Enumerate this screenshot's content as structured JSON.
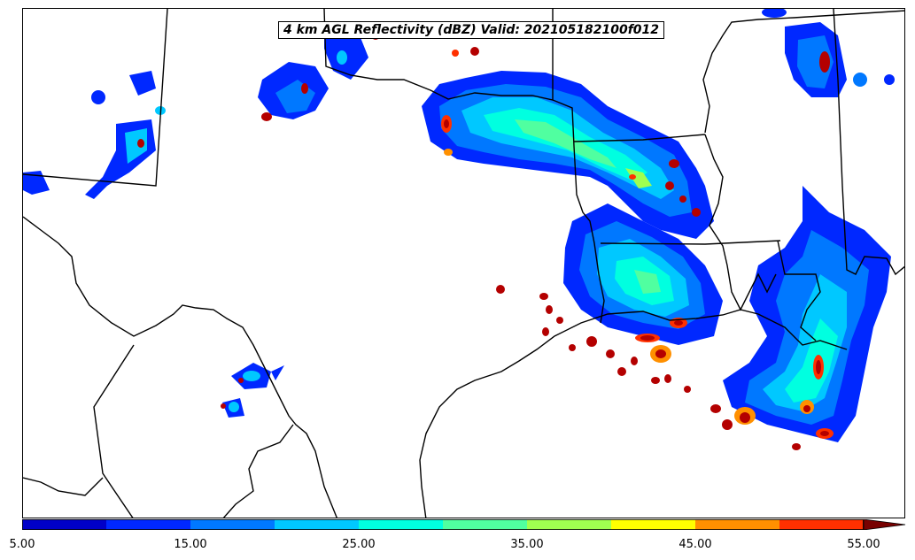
{
  "title": "4 km AGL Reflectivity (dBZ) Valid: 202105182100f012",
  "colorbar": {
    "levels": [
      5,
      10,
      15,
      20,
      25,
      30,
      35,
      40,
      45,
      50,
      55
    ],
    "colors": [
      "#0000c8",
      "#0028ff",
      "#0078ff",
      "#00c8ff",
      "#00ffe0",
      "#50ffa0",
      "#a0ff50",
      "#ffff00",
      "#ff9000",
      "#ff3000",
      "#b40000"
    ],
    "extend_color": "#780000",
    "tick_labels": [
      "5.00",
      "15.00",
      "25.00",
      "35.00",
      "45.00",
      "55.00"
    ]
  }
}
